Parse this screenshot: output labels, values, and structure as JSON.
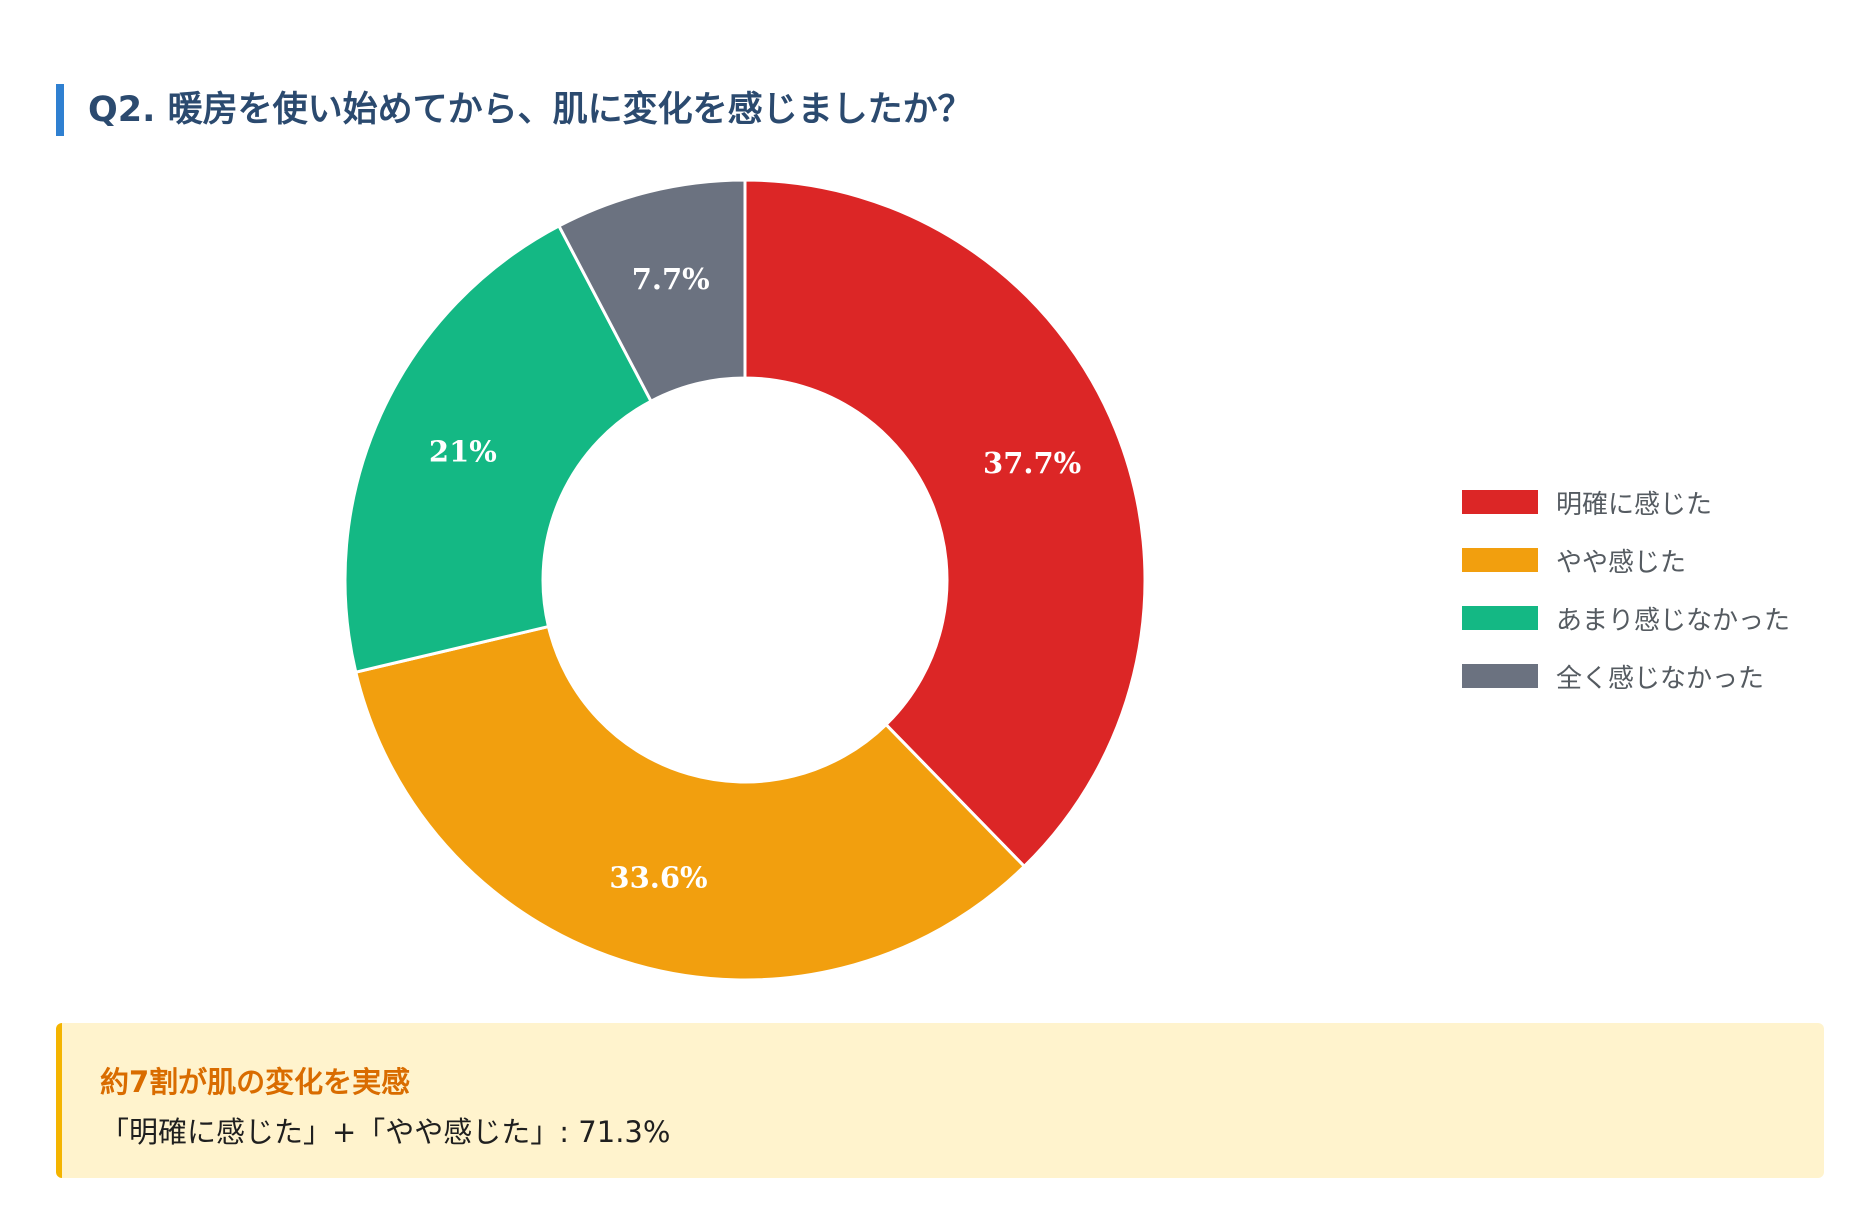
{
  "title": "Q2. 暖房を使い始めてから、肌に変化を感じましたか？",
  "chart_data": {
    "type": "pie",
    "variant": "donut",
    "categories": [
      "明確に感じた",
      "やや感じた",
      "あまり感じなかった",
      "全く感じなかった"
    ],
    "values": [
      37.7,
      33.6,
      21,
      7.7
    ],
    "value_labels": [
      "37.7%",
      "33.6%",
      "21%",
      "7.7%"
    ],
    "colors": [
      "#dc2626",
      "#f29f0e",
      "#14b884",
      "#6b7280"
    ],
    "legend_position": "right"
  },
  "summary": {
    "heading": "約7割が肌の変化を実感",
    "text": "「明確に感じた」+「やや感じた」: 71.3%"
  },
  "accent": {
    "title_bar": "#2f80d1",
    "title_text": "#2b4a6f",
    "summary_bg": "#fff3cd",
    "summary_border": "#f4b400",
    "summary_heading": "#d96c00"
  }
}
